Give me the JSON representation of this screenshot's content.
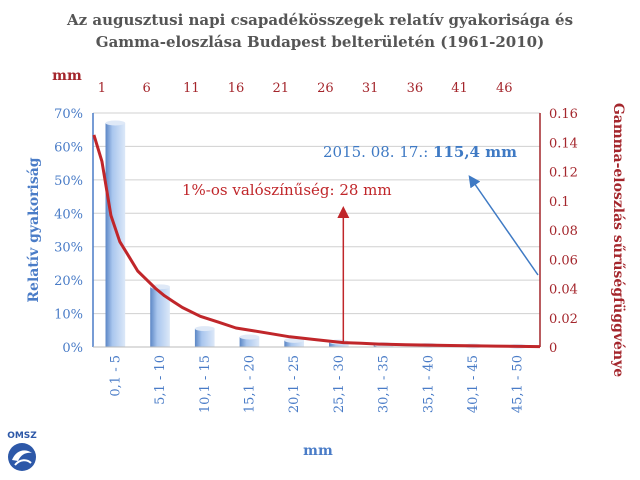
{
  "title_line1": "Az augusztusi napi csapadékösszegek relatív gyakorisága és",
  "title_line2": "Gamma-eloszlása Budapest belterületén (1961-2010)",
  "logo_text": "OMSZ",
  "colors": {
    "bar": "#a9c6ee",
    "bar_dark": "#5b86c5",
    "line": "#c0262a",
    "left_axis": "#4a7cc7",
    "right_axis": "#a4262c",
    "annotation_blue": "#3f7ac4",
    "annotation_red": "#c0262a",
    "grid": "#d0d0d0"
  },
  "chart_data": {
    "type": "bar",
    "xlabel": "mm",
    "ylabel_left": "Relatív gyakoriság",
    "ylabel_right": "Gamma-eloszlás sűrűségfüggvénye",
    "x2label": "mm",
    "categories": [
      "0,1 - 5",
      "5,1 - 10",
      "10,1 - 15",
      "15,1 - 20",
      "20,1 - 25",
      "25,1 - 30",
      "30,1 - 35",
      "35,1 - 40",
      "40,1 - 45",
      "45,1 - 50"
    ],
    "values": [
      67,
      18,
      5.5,
      3,
      2,
      1.5,
      0.7,
      0.5,
      0.3,
      0.2
    ],
    "y_left_ticks": [
      "0%",
      "10%",
      "20%",
      "30%",
      "40%",
      "50%",
      "60%",
      "70%"
    ],
    "ylim_left": [
      0,
      70
    ],
    "y_right_ticks": [
      "0",
      "0.02",
      "0.04",
      "0.06",
      "0.08",
      "0.1",
      "0.12",
      "0.14",
      "0.16"
    ],
    "ylim_right": [
      0,
      0.16
    ],
    "x_top_ticks": [
      "1",
      "6",
      "11",
      "16",
      "21",
      "26",
      "31",
      "36",
      "41",
      "46"
    ],
    "gamma_series": {
      "x_mm": [
        0.1,
        1,
        2,
        3,
        4,
        5,
        6,
        7,
        8,
        9,
        10,
        12,
        14,
        16,
        18,
        20,
        22,
        25,
        28,
        30,
        32,
        35,
        40,
        45,
        50
      ],
      "density": [
        0.145,
        0.127,
        0.09,
        0.072,
        0.062,
        0.052,
        0.046,
        0.04,
        0.035,
        0.031,
        0.027,
        0.021,
        0.017,
        0.013,
        0.011,
        0.009,
        0.007,
        0.005,
        0.003,
        0.0025,
        0.002,
        0.0015,
        0.001,
        0.0006,
        0.0003
      ]
    },
    "annotation_event_label": "2015. 08. 17.: ",
    "annotation_event_value": "115,4 mm",
    "annotation_percentile": "1%-os valószínűség: 28 mm",
    "annotation_percentile_mm": 28
  }
}
